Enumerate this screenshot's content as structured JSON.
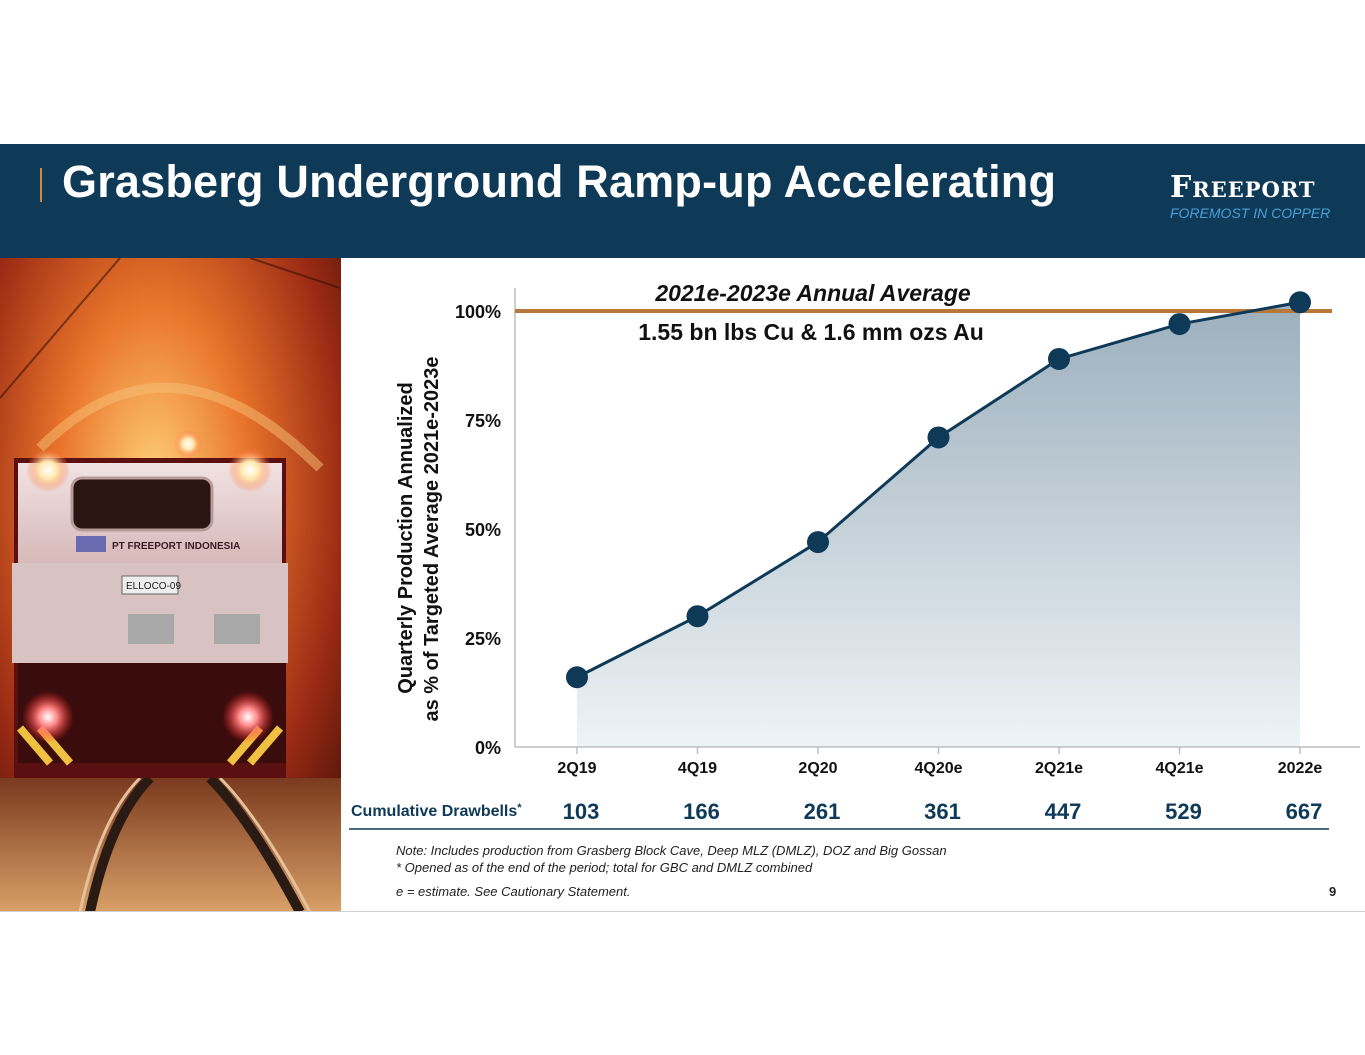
{
  "slide": {
    "title": "Grasberg Underground Ramp-up Accelerating",
    "logo": {
      "name": "Freeport",
      "tagline": "FOREMOST IN COPPER"
    },
    "page_number": "9",
    "notes": [
      "Note: Includes production  from Grasberg Block Cave, Deep MLZ (DMLZ),  DOZ and Big Gossan",
      "* Opened as of the end of the period;  total for GBC and DMLZ  combined",
      "e = estimate.  See Cautionary  Statement."
    ],
    "photo_text": {
      "company": "PT FREEPORT INDONESIA",
      "vehicle_id": "ELLOCO-09"
    }
  },
  "colors": {
    "header_bg": "#0f3a57",
    "series_line": "#0f3a57",
    "marker": "#0f3a57",
    "reference_line": "#b8783a",
    "area_fill_top": "#9cafbd",
    "area_fill_bottom": "#eef3f6",
    "logo_tagline": "#4a9fd8"
  },
  "chart_data": {
    "type": "area",
    "categories": [
      "2Q19",
      "4Q19",
      "2Q20",
      "4Q20e",
      "2Q21e",
      "4Q21e",
      "2022e"
    ],
    "series": [
      {
        "values": [
          16,
          30,
          47,
          71,
          89,
          97,
          102
        ]
      }
    ],
    "ylabel_line1": "Quarterly  Production  Annualized",
    "ylabel_line2": "as % of Targeted Average 2021e-2023e",
    "ylim": [
      0,
      100
    ],
    "yticks": [
      0,
      25,
      50,
      75,
      100
    ],
    "ytick_labels": [
      "0%",
      "25%",
      "50%",
      "75%",
      "100%"
    ],
    "reference_line": {
      "value": 100,
      "label_line1": "2021e-2023e  Annual Average",
      "label_line2": "1.55 bn lbs Cu & 1.6 mm  ozs Au"
    },
    "table_row": {
      "label": "Cumulative Drawbells",
      "label_marker": "*",
      "values": [
        "103",
        "166",
        "261",
        "361",
        "447",
        "529",
        "667"
      ]
    },
    "grid": false,
    "legend": "none"
  }
}
